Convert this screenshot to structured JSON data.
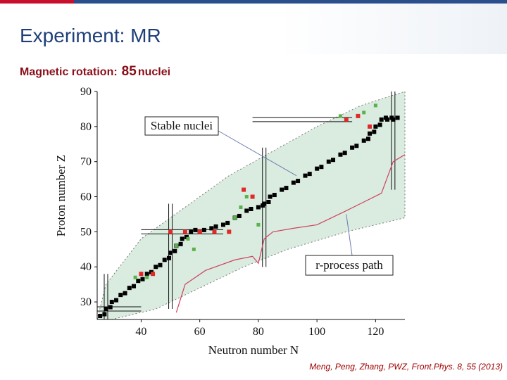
{
  "slide": {
    "title": "Experiment: MR",
    "subtitle_prefix": "Magnetic rotation:",
    "subtitle_count": "85",
    "subtitle_suffix": "nuclei",
    "citation": "Meng, Peng, Zhang, PWZ, Front.Phys. 8, 55 (2013)"
  },
  "colors": {
    "title": "#1f3f7a",
    "subtitle": "#8b0e1a",
    "band": "#d9ecdf",
    "stable": "#000000",
    "mr_red": "#e02a2a",
    "mr_green": "#5bb24a",
    "rprocess": "#d04060",
    "citation": "#a00000"
  },
  "chart_data": {
    "type": "scatter",
    "xlabel": "Neutron number N",
    "ylabel": "Proton number Z",
    "xlim": [
      25,
      130
    ],
    "ylim": [
      25,
      90
    ],
    "xticks": [
      40,
      60,
      80,
      100,
      120
    ],
    "yticks": [
      30,
      40,
      50,
      60,
      70,
      80,
      90
    ],
    "grid": false,
    "annotations": [
      {
        "text": "Stable nuclei",
        "target": [
          93,
          66
        ]
      },
      {
        "text": "r-process path",
        "target": [
          110,
          55
        ]
      }
    ],
    "magic_numbers": [
      28,
      50,
      82,
      126
    ],
    "band_upper": [
      [
        25,
        25
      ],
      [
        28,
        35
      ],
      [
        40,
        48
      ],
      [
        55,
        57
      ],
      [
        70,
        66
      ],
      [
        85,
        73
      ],
      [
        100,
        80
      ],
      [
        115,
        86
      ],
      [
        130,
        90
      ]
    ],
    "band_lower": [
      [
        25,
        25
      ],
      [
        30,
        25
      ],
      [
        45,
        28
      ],
      [
        60,
        34
      ],
      [
        75,
        40
      ],
      [
        90,
        45
      ],
      [
        110,
        50
      ],
      [
        130,
        54
      ]
    ],
    "r_process_path": [
      [
        52,
        27
      ],
      [
        55,
        35
      ],
      [
        62,
        39
      ],
      [
        72,
        42
      ],
      [
        78,
        43
      ],
      [
        80,
        41
      ],
      [
        82,
        48
      ],
      [
        85,
        50
      ],
      [
        92,
        51
      ],
      [
        100,
        52
      ],
      [
        110,
        56
      ],
      [
        122,
        61
      ],
      [
        126,
        70
      ],
      [
        130,
        72
      ]
    ],
    "mr_red_points": [
      [
        40,
        38
      ],
      [
        44,
        38
      ],
      [
        50,
        50
      ],
      [
        55,
        50
      ],
      [
        60,
        50
      ],
      [
        65,
        50
      ],
      [
        70,
        50
      ],
      [
        75,
        62
      ],
      [
        78,
        60
      ],
      [
        110,
        82
      ],
      [
        114,
        83
      ],
      [
        118,
        80
      ]
    ],
    "mr_green_points": [
      [
        38,
        37
      ],
      [
        42,
        37
      ],
      [
        52,
        46
      ],
      [
        56,
        48
      ],
      [
        58,
        45
      ],
      [
        72,
        54
      ],
      [
        74,
        57
      ],
      [
        76,
        60
      ],
      [
        80,
        52
      ],
      [
        108,
        83
      ],
      [
        116,
        84
      ],
      [
        120,
        86
      ]
    ],
    "series": [
      {
        "name": "Stable nuclei",
        "values": [
          [
            26,
            26
          ],
          [
            28,
            28
          ],
          [
            30,
            30
          ],
          [
            33,
            32
          ],
          [
            36,
            34
          ],
          [
            39,
            36
          ],
          [
            42,
            38
          ],
          [
            45,
            40
          ],
          [
            48,
            42
          ],
          [
            50,
            44
          ],
          [
            52,
            46
          ],
          [
            54,
            48
          ],
          [
            57,
            50
          ],
          [
            60,
            50
          ],
          [
            64,
            51
          ],
          [
            68,
            52
          ],
          [
            72,
            54
          ],
          [
            76,
            56
          ],
          [
            80,
            57
          ],
          [
            82,
            58
          ],
          [
            84,
            60
          ],
          [
            88,
            62
          ],
          [
            92,
            64
          ],
          [
            96,
            66
          ],
          [
            100,
            68
          ],
          [
            104,
            70
          ],
          [
            108,
            72
          ],
          [
            112,
            74
          ],
          [
            116,
            76
          ],
          [
            118,
            78
          ],
          [
            120,
            80
          ],
          [
            122,
            82
          ],
          [
            124,
            82
          ],
          [
            126,
            82
          ]
        ]
      }
    ]
  }
}
